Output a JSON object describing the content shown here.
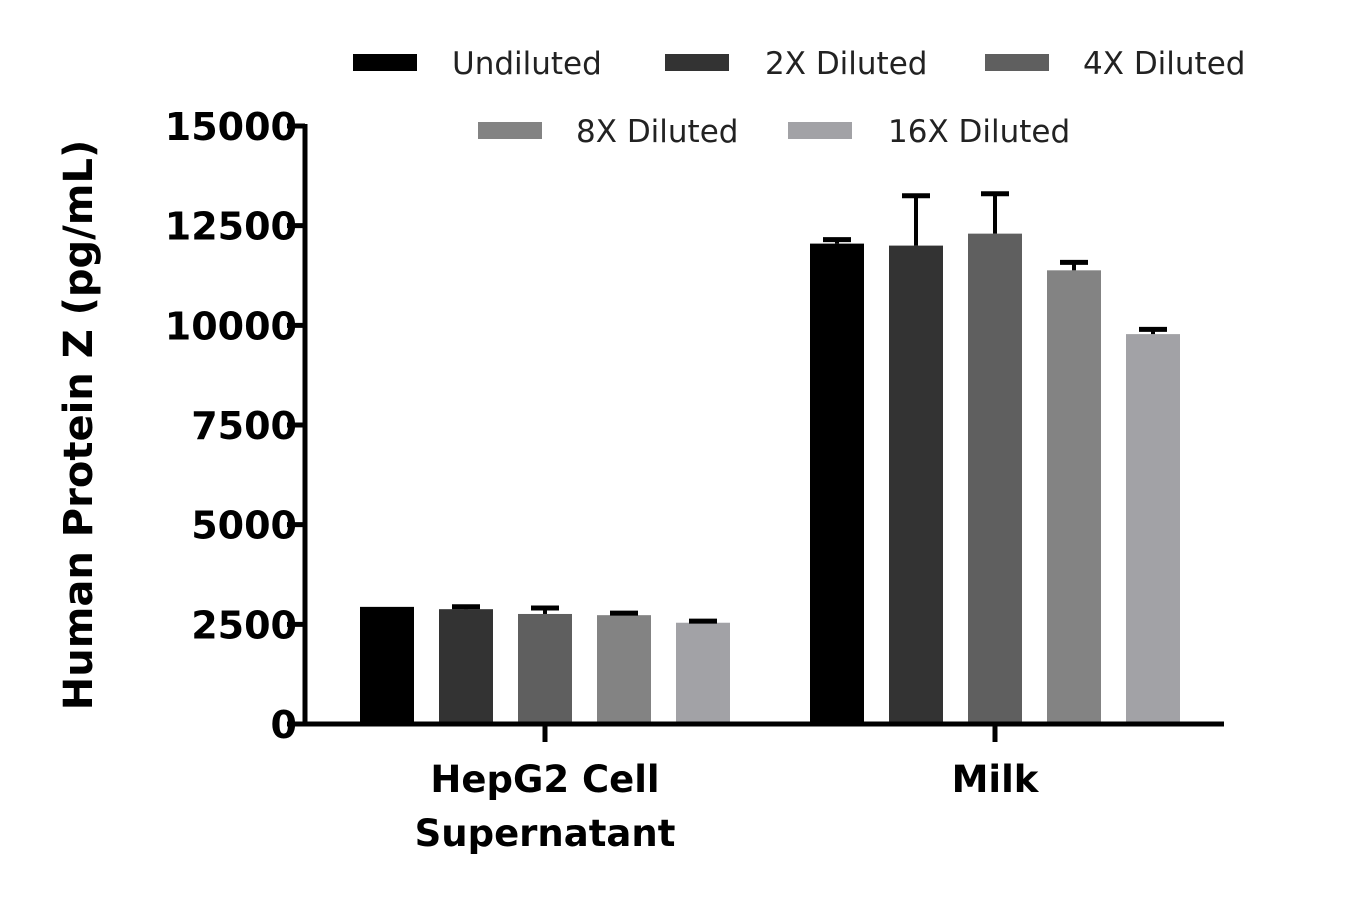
{
  "chart_data": {
    "type": "bar",
    "ylabel": "Human Protein Z (pg/mL)",
    "xlabel": "",
    "title": "",
    "ylim": [
      0,
      15000
    ],
    "yticks": [
      0,
      2500,
      5000,
      7500,
      10000,
      12500,
      15000
    ],
    "categories": [
      [
        "HepG2 Cell",
        "Supernatant"
      ],
      [
        "Milk"
      ]
    ],
    "legend_position": "top",
    "grid": false,
    "series": [
      {
        "name": "Undiluted",
        "color": "#000000",
        "values": [
          2900,
          12050
        ],
        "errors": [
          0,
          100
        ]
      },
      {
        "name": "2X Diluted",
        "color": "#333333",
        "values": [
          2880,
          12000
        ],
        "errors": [
          60,
          1250
        ]
      },
      {
        "name": "4X Diluted",
        "color": "#5f5f5f",
        "values": [
          2760,
          12300
        ],
        "errors": [
          150,
          1000
        ]
      },
      {
        "name": "8X Diluted",
        "color": "#838383",
        "values": [
          2730,
          11380
        ],
        "errors": [
          50,
          200
        ]
      },
      {
        "name": "16X Diluted",
        "color": "#a2a2a6",
        "values": [
          2540,
          9780
        ],
        "errors": [
          40,
          120
        ]
      }
    ]
  }
}
